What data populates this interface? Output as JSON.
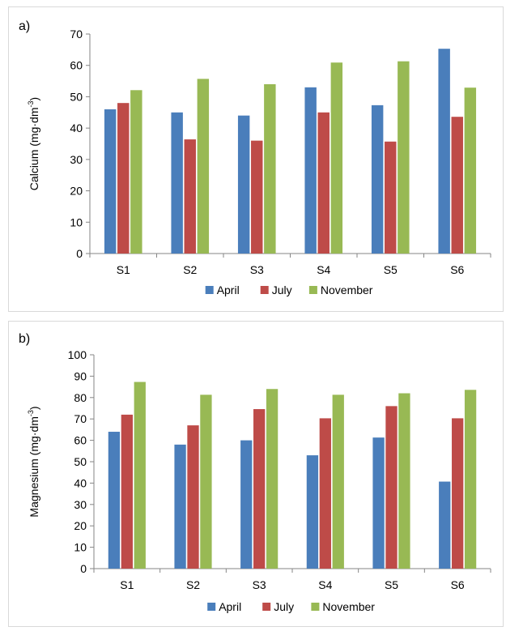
{
  "chart_data": [
    {
      "panel_label": "a)",
      "type": "bar",
      "categories": [
        "S1",
        "S2",
        "S3",
        "S4",
        "S5",
        "S6"
      ],
      "series": [
        {
          "name": "April",
          "color": "#4a7ebb",
          "values": [
            46,
            45,
            44,
            53,
            47.3,
            65.3
          ]
        },
        {
          "name": "July",
          "color": "#be4b48",
          "values": [
            48,
            36.4,
            36,
            45,
            35.7,
            43.6
          ]
        },
        {
          "name": "November",
          "color": "#98b954",
          "values": [
            52.1,
            55.7,
            54,
            60.9,
            61.3,
            52.9
          ]
        }
      ],
      "ylabel_text": "Calcium (mg·dm",
      "ylabel_sup": "-3",
      "ylabel_close": ")",
      "ylim": [
        0,
        70
      ],
      "yticks": [
        0,
        10,
        20,
        30,
        40,
        50,
        60,
        70
      ],
      "grid": false,
      "legend": "bottom"
    },
    {
      "panel_label": "b)",
      "type": "bar",
      "categories": [
        "S1",
        "S2",
        "S3",
        "S4",
        "S5",
        "S6"
      ],
      "series": [
        {
          "name": "April",
          "color": "#4a7ebb",
          "values": [
            64,
            58,
            60,
            53,
            61.3,
            40.7
          ]
        },
        {
          "name": "July",
          "color": "#be4b48",
          "values": [
            72,
            67,
            74.6,
            70.3,
            76,
            70.3
          ]
        },
        {
          "name": "November",
          "color": "#98b954",
          "values": [
            87.3,
            81.3,
            84,
            81.3,
            82,
            83.6
          ]
        }
      ],
      "ylabel_text": "Magnesium (mg·dm",
      "ylabel_sup": "-3",
      "ylabel_close": ")",
      "ylim": [
        0,
        100
      ],
      "yticks": [
        0,
        10,
        20,
        30,
        40,
        50,
        60,
        70,
        80,
        90,
        100
      ],
      "grid": false,
      "legend": "bottom"
    }
  ]
}
